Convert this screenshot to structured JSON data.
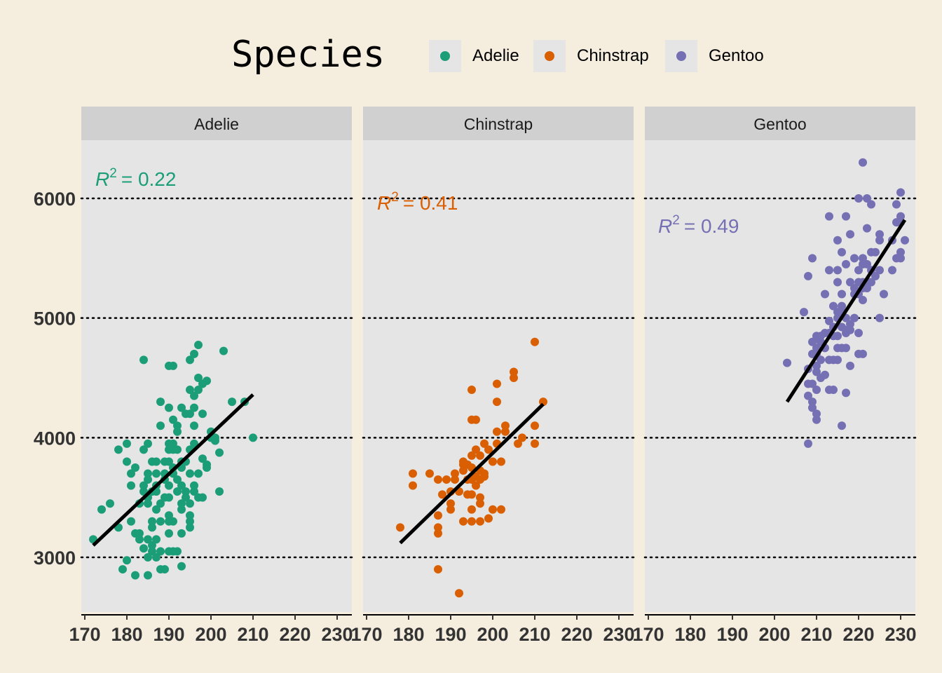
{
  "legend": {
    "title": "Species",
    "entries": [
      {
        "name": "Adelie",
        "color": "#1B9E77"
      },
      {
        "name": "Chinstrap",
        "color": "#D95F02"
      },
      {
        "name": "Gentoo",
        "color": "#7570B3"
      }
    ]
  },
  "chart_data": {
    "type": "scatter",
    "facet_by": "species",
    "x_ticks": [
      170,
      180,
      190,
      200,
      210,
      220,
      230
    ],
    "y_ticks": [
      3000,
      4000,
      5000,
      6000
    ],
    "xlim": [
      169,
      233
    ],
    "ylim": [
      2540,
      6500
    ],
    "grid": "dotted horizontal at y ticks",
    "legend_position": "top",
    "panels": [
      {
        "name": "Adelie",
        "color": "#1B9E77",
        "r2_label": "= 0.22",
        "fit": {
          "x": [
            172,
            210
          ],
          "y": [
            3100,
            4360
          ]
        },
        "points": [
          [
            172,
            3150
          ],
          [
            174,
            3400
          ],
          [
            176,
            3450
          ],
          [
            178,
            3250
          ],
          [
            178,
            3900
          ],
          [
            179,
            2900
          ],
          [
            180,
            2975
          ],
          [
            180,
            3800
          ],
          [
            180,
            3950
          ],
          [
            181,
            3600
          ],
          [
            181,
            3700
          ],
          [
            181,
            3300
          ],
          [
            182,
            3750
          ],
          [
            182,
            3200
          ],
          [
            182,
            2850
          ],
          [
            183,
            3450
          ],
          [
            183,
            3150
          ],
          [
            183,
            3200
          ],
          [
            184,
            3550
          ],
          [
            184,
            3600
          ],
          [
            184,
            3075
          ],
          [
            184,
            3900
          ],
          [
            185,
            3500
          ],
          [
            185,
            3650
          ],
          [
            185,
            3700
          ],
          [
            185,
            3950
          ],
          [
            185,
            3150
          ],
          [
            185,
            3000
          ],
          [
            185,
            3450
          ],
          [
            185,
            2850
          ],
          [
            184,
            4650
          ],
          [
            186,
            3550
          ],
          [
            186,
            3050
          ],
          [
            186,
            3300
          ],
          [
            186,
            3800
          ],
          [
            186,
            3100
          ],
          [
            186,
            3250
          ],
          [
            187,
            3550
          ],
          [
            187,
            3800
          ],
          [
            187,
            3000
          ],
          [
            187,
            3400
          ],
          [
            187,
            3700
          ],
          [
            187,
            3150
          ],
          [
            187,
            3600
          ],
          [
            188,
            3050
          ],
          [
            188,
            2900
          ],
          [
            188,
            4300
          ],
          [
            188,
            3300
          ],
          [
            188,
            4100
          ],
          [
            188,
            3450
          ],
          [
            189,
            2900
          ],
          [
            189,
            3800
          ],
          [
            189,
            3700
          ],
          [
            189,
            3650
          ],
          [
            189,
            3500
          ],
          [
            190,
            3950
          ],
          [
            190,
            3800
          ],
          [
            190,
            3300
          ],
          [
            190,
            3600
          ],
          [
            190,
            4250
          ],
          [
            190,
            3900
          ],
          [
            190,
            3500
          ],
          [
            190,
            3200
          ],
          [
            190,
            3350
          ],
          [
            190,
            3050
          ],
          [
            190,
            4600
          ],
          [
            191,
            3750
          ],
          [
            191,
            3900
          ],
          [
            191,
            4150
          ],
          [
            191,
            3300
          ],
          [
            191,
            3700
          ],
          [
            191,
            4600
          ],
          [
            191,
            3950
          ],
          [
            191,
            3050
          ],
          [
            192,
            3050
          ],
          [
            192,
            4050
          ],
          [
            192,
            3550
          ],
          [
            192,
            3650
          ],
          [
            192,
            4100
          ],
          [
            192,
            3900
          ],
          [
            193,
            3400
          ],
          [
            193,
            3750
          ],
          [
            193,
            3800
          ],
          [
            193,
            3450
          ],
          [
            193,
            4250
          ],
          [
            193,
            3600
          ],
          [
            193,
            3200
          ],
          [
            193,
            2925
          ],
          [
            194,
            4200
          ],
          [
            194,
            3550
          ],
          [
            194,
            3500
          ],
          [
            194,
            3800
          ],
          [
            195,
            3350
          ],
          [
            195,
            3300
          ],
          [
            195,
            3250
          ],
          [
            195,
            3900
          ],
          [
            195,
            4400
          ],
          [
            195,
            4650
          ],
          [
            195,
            3700
          ],
          [
            195,
            3450
          ],
          [
            195,
            4200
          ],
          [
            196,
            4250
          ],
          [
            196,
            4700
          ],
          [
            196,
            3600
          ],
          [
            196,
            4350
          ],
          [
            196,
            3550
          ],
          [
            196,
            3950
          ],
          [
            196,
            4100
          ],
          [
            197,
            4500
          ],
          [
            197,
            3700
          ],
          [
            197,
            4775
          ],
          [
            197,
            3500
          ],
          [
            197,
            4400
          ],
          [
            198,
            3825
          ],
          [
            198,
            3500
          ],
          [
            198,
            4450
          ],
          [
            198,
            4200
          ],
          [
            199,
            3775
          ],
          [
            199,
            4475
          ],
          [
            199,
            3750
          ],
          [
            200,
            4000
          ],
          [
            200,
            4050
          ],
          [
            201,
            4000
          ],
          [
            201,
            3975
          ],
          [
            202,
            3875
          ],
          [
            202,
            3550
          ],
          [
            203,
            4725
          ],
          [
            205,
            4300
          ],
          [
            208,
            4300
          ],
          [
            210,
            4000
          ]
        ]
      },
      {
        "name": "Chinstrap",
        "color": "#D95F02",
        "r2_label": "= 0.41",
        "fit": {
          "x": [
            178,
            212
          ],
          "y": [
            3120,
            4280
          ]
        },
        "points": [
          [
            178,
            3250
          ],
          [
            181,
            3700
          ],
          [
            181,
            3600
          ],
          [
            185,
            3700
          ],
          [
            187,
            3650
          ],
          [
            187,
            3350
          ],
          [
            187,
            3250
          ],
          [
            187,
            3200
          ],
          [
            187,
            2900
          ],
          [
            188,
            3525
          ],
          [
            189,
            3650
          ],
          [
            190,
            3450
          ],
          [
            190,
            3400
          ],
          [
            190,
            3550
          ],
          [
            191,
            3700
          ],
          [
            191,
            3650
          ],
          [
            192,
            3550
          ],
          [
            192,
            2700
          ],
          [
            193,
            3300
          ],
          [
            193,
            3725
          ],
          [
            193,
            3775
          ],
          [
            193,
            3800
          ],
          [
            194,
            3650
          ],
          [
            194,
            3775
          ],
          [
            194,
            3525
          ],
          [
            195,
            3850
          ],
          [
            195,
            3750
          ],
          [
            195,
            3300
          ],
          [
            195,
            3400
          ],
          [
            195,
            4150
          ],
          [
            195,
            3650
          ],
          [
            195,
            3525
          ],
          [
            195,
            4400
          ],
          [
            196,
            3600
          ],
          [
            196,
            3675
          ],
          [
            196,
            3900
          ],
          [
            196,
            4150
          ],
          [
            197,
            3450
          ],
          [
            197,
            3850
          ],
          [
            197,
            3300
          ],
          [
            197,
            3500
          ],
          [
            197,
            3725
          ],
          [
            197,
            3650
          ],
          [
            198,
            3950
          ],
          [
            198,
            3700
          ],
          [
            198,
            3675
          ],
          [
            199,
            3900
          ],
          [
            199,
            3325
          ],
          [
            200,
            3400
          ],
          [
            200,
            3800
          ],
          [
            201,
            4450
          ],
          [
            201,
            4300
          ],
          [
            201,
            3950
          ],
          [
            201,
            4050
          ],
          [
            202,
            3800
          ],
          [
            202,
            3400
          ],
          [
            203,
            4100
          ],
          [
            203,
            4050
          ],
          [
            205,
            4550
          ],
          [
            205,
            4500
          ],
          [
            206,
            3950
          ],
          [
            207,
            4000
          ],
          [
            210,
            3950
          ],
          [
            210,
            4100
          ],
          [
            210,
            4800
          ],
          [
            212,
            4300
          ]
        ]
      },
      {
        "name": "Gentoo",
        "color": "#7570B3",
        "r2_label": "= 0.49",
        "fit": {
          "x": [
            203,
            231
          ],
          "y": [
            4300,
            5820
          ]
        },
        "points": [
          [
            203,
            4625
          ],
          [
            207,
            5050
          ],
          [
            208,
            3950
          ],
          [
            208,
            4350
          ],
          [
            208,
            4575
          ],
          [
            208,
            4450
          ],
          [
            208,
            5350
          ],
          [
            209,
            4250
          ],
          [
            209,
            4300
          ],
          [
            209,
            4700
          ],
          [
            209,
            4800
          ],
          [
            209,
            5500
          ],
          [
            209,
            4450
          ],
          [
            210,
            4200
          ],
          [
            210,
            4150
          ],
          [
            210,
            4400
          ],
          [
            210,
            4850
          ],
          [
            210,
            4600
          ],
          [
            210,
            4750
          ],
          [
            210,
            4550
          ],
          [
            210,
            4825
          ],
          [
            210,
            4700
          ],
          [
            211,
            4500
          ],
          [
            211,
            4800
          ],
          [
            211,
            4650
          ],
          [
            211,
            4850
          ],
          [
            212,
            4875
          ],
          [
            212,
            4750
          ],
          [
            212,
            5200
          ],
          [
            212,
            4525
          ],
          [
            213,
            4650
          ],
          [
            213,
            4975
          ],
          [
            213,
            4400
          ],
          [
            213,
            4875
          ],
          [
            213,
            5850
          ],
          [
            213,
            5400
          ],
          [
            214,
            4850
          ],
          [
            214,
            4925
          ],
          [
            214,
            4650
          ],
          [
            214,
            5100
          ],
          [
            214,
            4400
          ],
          [
            215,
            4750
          ],
          [
            215,
            5000
          ],
          [
            215,
            4650
          ],
          [
            215,
            5300
          ],
          [
            215,
            4850
          ],
          [
            215,
            5050
          ],
          [
            215,
            5400
          ],
          [
            215,
            5650
          ],
          [
            216,
            5100
          ],
          [
            216,
            5050
          ],
          [
            216,
            4925
          ],
          [
            216,
            4100
          ],
          [
            216,
            4750
          ],
          [
            216,
            5550
          ],
          [
            216,
            5200
          ],
          [
            217,
            4375
          ],
          [
            217,
            4900
          ],
          [
            217,
            5000
          ],
          [
            217,
            4875
          ],
          [
            217,
            5850
          ],
          [
            217,
            5450
          ],
          [
            217,
            4750
          ],
          [
            218,
            5300
          ],
          [
            218,
            4950
          ],
          [
            218,
            5700
          ],
          [
            218,
            4900
          ],
          [
            218,
            4600
          ],
          [
            219,
            5250
          ],
          [
            219,
            5200
          ],
          [
            219,
            5000
          ],
          [
            219,
            5500
          ],
          [
            220,
            5300
          ],
          [
            220,
            4700
          ],
          [
            220,
            5400
          ],
          [
            220,
            5200
          ],
          [
            220,
            4875
          ],
          [
            220,
            6000
          ],
          [
            221,
            5500
          ],
          [
            221,
            5450
          ],
          [
            221,
            4700
          ],
          [
            221,
            5250
          ],
          [
            221,
            5150
          ],
          [
            221,
            5300
          ],
          [
            221,
            6300
          ],
          [
            222,
            5250
          ],
          [
            222,
            5300
          ],
          [
            222,
            5450
          ],
          [
            222,
            5750
          ],
          [
            222,
            6000
          ],
          [
            223,
            5550
          ],
          [
            223,
            5950
          ],
          [
            223,
            5300
          ],
          [
            223,
            5400
          ],
          [
            224,
            5350
          ],
          [
            224,
            5550
          ],
          [
            225,
            5650
          ],
          [
            225,
            5000
          ],
          [
            225,
            5400
          ],
          [
            225,
            5700
          ],
          [
            226,
            5200
          ],
          [
            228,
            5650
          ],
          [
            228,
            5400
          ],
          [
            229,
            5800
          ],
          [
            229,
            5500
          ],
          [
            229,
            5950
          ],
          [
            230,
            5800
          ],
          [
            230,
            6050
          ],
          [
            230,
            5550
          ],
          [
            230,
            5850
          ],
          [
            230,
            5500
          ],
          [
            231,
            5650
          ]
        ]
      }
    ]
  }
}
